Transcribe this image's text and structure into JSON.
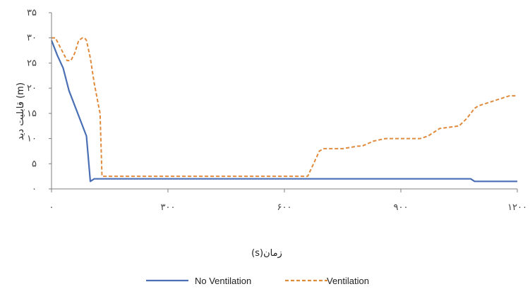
{
  "chart_data": {
    "type": "line",
    "title": "",
    "xlabel": "زمان(s)",
    "ylabel": "قابلیت دید (m)",
    "xlim": [
      0,
      1200
    ],
    "ylim": [
      0,
      35
    ],
    "x_ticks": [
      0,
      300,
      600,
      900,
      1200
    ],
    "x_tick_labels": [
      "۰",
      "۳۰۰",
      "۶۰۰",
      "۹۰۰",
      "۱۲۰۰"
    ],
    "y_ticks": [
      0,
      5,
      10,
      15,
      20,
      25,
      30,
      35
    ],
    "y_tick_labels": [
      "۰",
      "۵",
      "۱۰",
      "۱۵",
      "۲۰",
      "۲۵",
      "۳۰",
      "۳۵"
    ],
    "grid": false,
    "legend_position": "bottom",
    "series": [
      {
        "name": "No Ventilation",
        "color": "#4a6fb5",
        "style": "solid",
        "x": [
          0,
          15,
          30,
          45,
          90,
          100,
          110,
          200,
          400,
          600,
          800,
          1000,
          1080,
          1090,
          1200
        ],
        "y": [
          29.5,
          26.5,
          24,
          19.5,
          10.5,
          1.5,
          2,
          2,
          2,
          2,
          2,
          2,
          2,
          1.5,
          1.5
        ]
      },
      {
        "name": "Ventilation",
        "color": "#e08a3c",
        "style": "dashed",
        "x": [
          0,
          10,
          20,
          30,
          40,
          50,
          60,
          70,
          80,
          85,
          90,
          100,
          110,
          120,
          125,
          130,
          140,
          300,
          500,
          660,
          675,
          690,
          700,
          750,
          790,
          800,
          830,
          860,
          900,
          950,
          970,
          1000,
          1050,
          1070,
          1090,
          1100,
          1120,
          1140,
          1160,
          1180,
          1200
        ],
        "y": [
          30,
          30,
          28.5,
          27,
          25.5,
          25.5,
          27,
          29.5,
          30,
          30,
          29.5,
          26,
          21,
          17,
          15,
          2.5,
          2.5,
          2.5,
          2.5,
          2.5,
          5,
          7.5,
          8,
          8,
          8.5,
          8.5,
          9.5,
          10,
          10,
          10,
          10.5,
          12,
          12.5,
          14,
          16,
          16.5,
          17,
          17.5,
          18,
          18.5,
          18.5
        ]
      }
    ]
  }
}
